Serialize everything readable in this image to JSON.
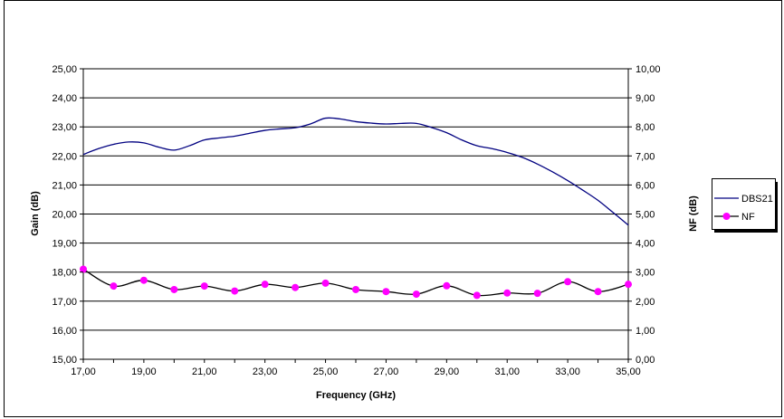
{
  "chart_data": {
    "type": "line",
    "title": "",
    "xlabel": "Frequency (GHz)",
    "ylabel": "Gain (dB)",
    "y2label": "NF (dB)",
    "xlim": [
      17,
      35
    ],
    "ylim": [
      15,
      25
    ],
    "y2lim": [
      0,
      10
    ],
    "xticks": [
      "17,00",
      "19,00",
      "21,00",
      "23,00",
      "25,00",
      "27,00",
      "29,00",
      "31,00",
      "33,00",
      "35,00"
    ],
    "yticks": [
      "15,00",
      "16,00",
      "17,00",
      "18,00",
      "19,00",
      "20,00",
      "21,00",
      "22,00",
      "23,00",
      "24,00",
      "25,00"
    ],
    "y2ticks": [
      "0,00",
      "1,00",
      "2,00",
      "3,00",
      "4,00",
      "5,00",
      "6,00",
      "7,00",
      "8,00",
      "9,00",
      "10,00"
    ],
    "grid": true,
    "legend_position": "right",
    "series": [
      {
        "name": "DBS21",
        "axis": "left",
        "color": "#000080",
        "marker": "none",
        "x": [
          17,
          17.5,
          18,
          18.5,
          19,
          19.5,
          20,
          20.5,
          21,
          21.5,
          22,
          22.5,
          23,
          23.5,
          24,
          24.5,
          25,
          25.5,
          26,
          26.5,
          27,
          27.5,
          28,
          28.5,
          29,
          29.5,
          30,
          30.5,
          31,
          31.5,
          32,
          32.5,
          33,
          33.5,
          34,
          34.5,
          35
        ],
        "y": [
          22.05,
          22.25,
          22.4,
          22.48,
          22.45,
          22.3,
          22.2,
          22.35,
          22.55,
          22.62,
          22.68,
          22.78,
          22.88,
          22.93,
          22.97,
          23.1,
          23.3,
          23.27,
          23.18,
          23.13,
          23.1,
          23.12,
          23.12,
          22.98,
          22.8,
          22.55,
          22.35,
          22.25,
          22.12,
          21.95,
          21.72,
          21.45,
          21.15,
          20.82,
          20.47,
          20.05,
          19.62
        ]
      },
      {
        "name": "NF",
        "axis": "right",
        "color": "#000000",
        "marker_color": "#ff00ff",
        "marker": "circle",
        "x": [
          17,
          18,
          19,
          20,
          21,
          22,
          23,
          24,
          25,
          26,
          27,
          28,
          29,
          30,
          31,
          32,
          33,
          34,
          35
        ],
        "y": [
          3.1,
          2.52,
          2.72,
          2.4,
          2.52,
          2.35,
          2.58,
          2.47,
          2.62,
          2.4,
          2.33,
          2.24,
          2.53,
          2.2,
          2.28,
          2.27,
          2.67,
          2.33,
          2.58
        ]
      }
    ]
  }
}
